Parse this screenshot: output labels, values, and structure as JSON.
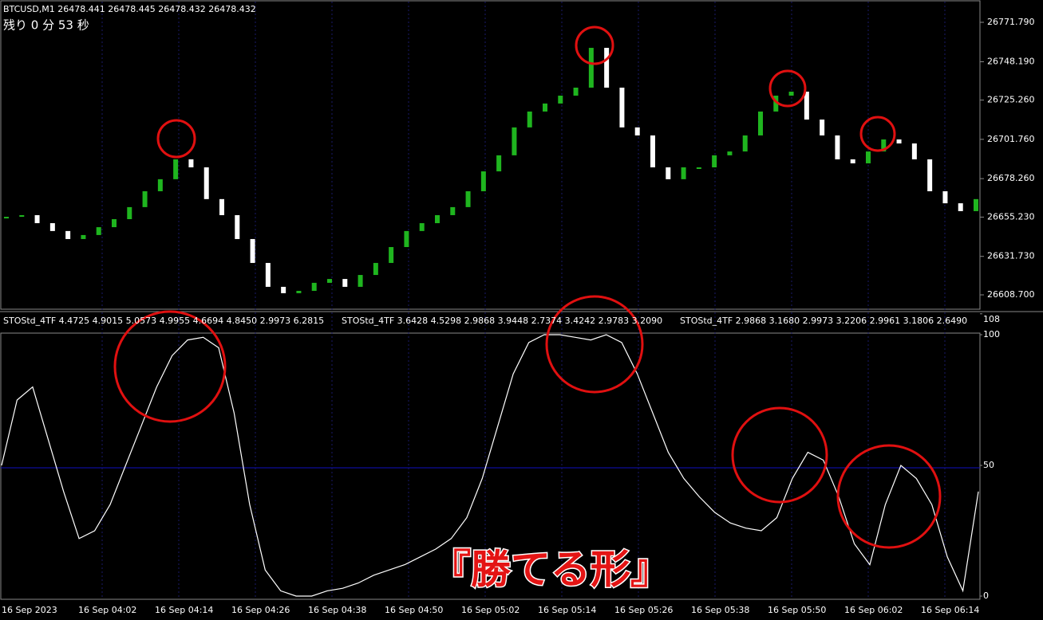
{
  "header": {
    "symbol_info": "BTCUSD,M1  26478.441 26478.445 26478.432 26478.432",
    "countdown": "残り 0 分 53 秒"
  },
  "price_panel": {
    "ticks": [
      {
        "value": 26771.79,
        "label": "26771.790"
      },
      {
        "value": 26748.19,
        "label": "26748.190"
      },
      {
        "value": 26725.26,
        "label": "26725.260"
      },
      {
        "value": 26701.76,
        "label": "26701.760"
      },
      {
        "value": 26678.26,
        "label": "26678.260"
      },
      {
        "value": 26655.23,
        "label": "26655.230"
      },
      {
        "value": 26631.73,
        "label": "26631.730"
      },
      {
        "value": 26608.7,
        "label": "26608.700"
      }
    ],
    "closes": [
      26655.4,
      26656.4,
      26651.6,
      26646.9,
      26642.1,
      26644.5,
      26649.2,
      26654.0,
      26661.2,
      26670.7,
      26677.9,
      26689.8,
      26685.0,
      26666.0,
      26656.4,
      26642.1,
      26627.8,
      26613.5,
      26609.7,
      26611.1,
      26615.9,
      26618.2,
      26613.5,
      26620.6,
      26627.8,
      26637.3,
      26646.9,
      26651.6,
      26656.4,
      26661.2,
      26670.7,
      26682.6,
      26692.2,
      26708.9,
      26718.4,
      26723.2,
      26727.9,
      26732.7,
      26756.5,
      26732.7,
      26708.9,
      26704.1,
      26685.0,
      26677.9,
      26685.0,
      26685.0,
      26692.2,
      26694.5,
      26704.1,
      26718.4,
      26727.9,
      26730.3,
      26713.6,
      26704.1,
      26689.8,
      26687.4,
      26694.5,
      26701.7,
      26699.3,
      26689.8,
      26670.7,
      26663.5,
      26658.8,
      26666.0
    ]
  },
  "indicator_panel": {
    "headers": [
      "STOStd_4TF 4.4725 4.9015 5.0573 4.9955 4.6694 4.8450 2.9973 6.2815",
      "STOStd_4TF 3.6428 4.5298 2.9868 3.9448 2.7374 3.4242 2.9783 3.2090",
      "STOStd_4TF 2.9868 3.1680 2.9973 3.2206 2.9961 3.1806 2.6490"
    ],
    "ylim": [
      0,
      100
    ],
    "ticks": [
      108,
      100,
      50,
      0
    ],
    "values": [
      50,
      75,
      80,
      60,
      40,
      22,
      25,
      35,
      50,
      65,
      80,
      92,
      98,
      99,
      95,
      70,
      35,
      10,
      2,
      0,
      0,
      2,
      3,
      5,
      8,
      10,
      12,
      15,
      18,
      22,
      30,
      45,
      65,
      85,
      97,
      100,
      100,
      99,
      98,
      100,
      97,
      85,
      70,
      55,
      45,
      38,
      32,
      28,
      26,
      25,
      30,
      45,
      55,
      52,
      38,
      20,
      12,
      35,
      50,
      45,
      35,
      15,
      2,
      40
    ]
  },
  "time_axis": {
    "labels": [
      "16 Sep 2023",
      "16 Sep 04:02",
      "16 Sep 04:14",
      "16 Sep 04:26",
      "16 Sep 04:38",
      "16 Sep 04:50",
      "16 Sep 05:02",
      "16 Sep 05:14",
      "16 Sep 05:26",
      "16 Sep 05:38",
      "16 Sep 05:50",
      "16 Sep 06:02",
      "16 Sep 06:14"
    ]
  },
  "overlay_title": "『勝てる形』"
}
